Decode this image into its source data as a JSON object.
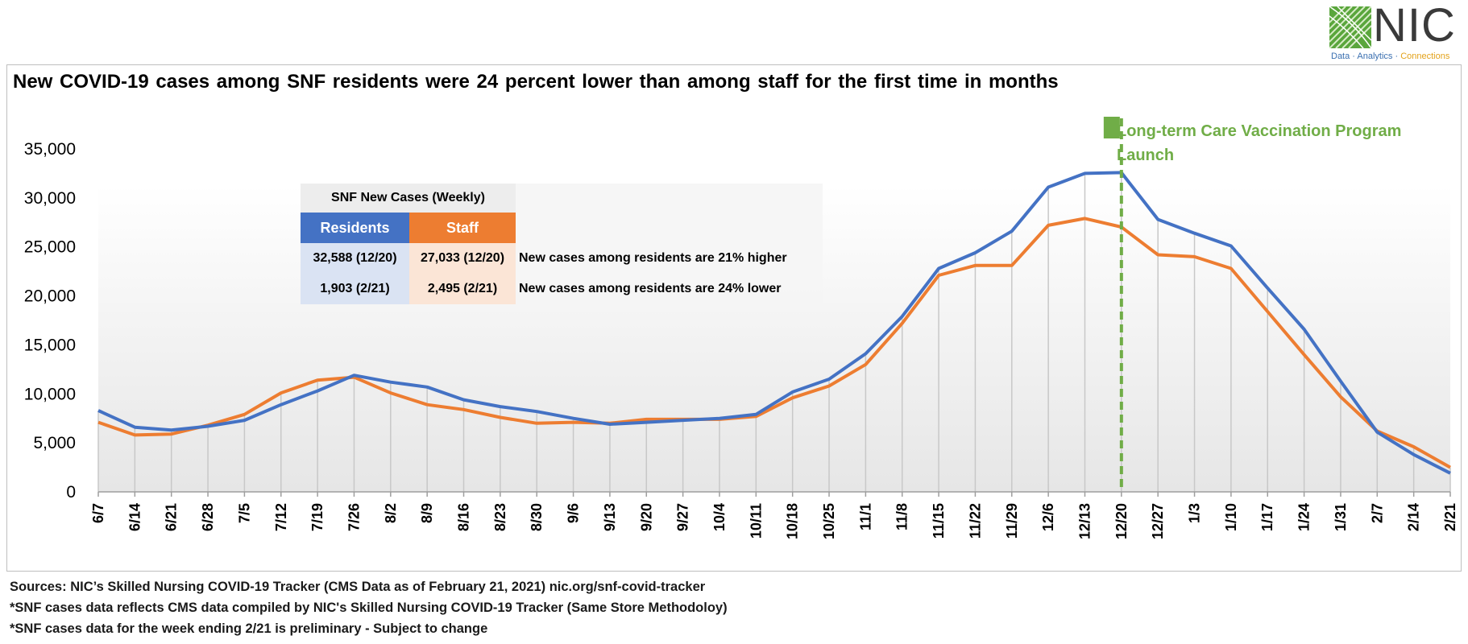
{
  "logo": {
    "name": "NIC",
    "tag_parts": [
      "Data · Analytics · ",
      "Connections"
    ]
  },
  "title": "New COVID-19 cases among SNF residents were 24 percent lower than among staff for the first time in months",
  "annotation": {
    "line1": "Long-term Care Vaccination Program",
    "line2": "Launch",
    "at_category": "12/20"
  },
  "table": {
    "header": "SNF New Cases (Weekly)",
    "col_residents": "Residents",
    "col_staff": "Staff",
    "rows": [
      {
        "residents": "32,588 (12/20)",
        "staff": "27,033 (12/20)",
        "note": "New cases among residents are 21% higher"
      },
      {
        "residents": "1,903 (2/21)",
        "staff": "2,495 (2/21)",
        "note": "New cases among residents are 24% lower"
      }
    ]
  },
  "sources": [
    "Sources: NIC’s Skilled Nursing COVID-19 Tracker (CMS Data as of February 21, 2021)  nic.org/snf-covid-tracker",
    "*SNF cases data reflects CMS data compiled by NIC's Skilled Nursing COVID-19 Tracker (Same Store Methodoloy)",
    "*SNF cases data for the week ending 2/21 is preliminary - Subject to change"
  ],
  "colors": {
    "residents": "#4472c4",
    "staff": "#ed7d31",
    "annotation": "#70ad47",
    "table_header_bg": "#ededed",
    "residents_light": "#dae3f3",
    "staff_light": "#fbe5d6"
  },
  "chart_data": {
    "type": "line",
    "title": "New COVID-19 cases among SNF residents were 24 percent lower than among staff for the first time in months",
    "xlabel": "",
    "ylabel": "",
    "ylim": [
      0,
      35000
    ],
    "yticks": [
      0,
      5000,
      10000,
      15000,
      20000,
      25000,
      30000,
      35000
    ],
    "ytick_labels": [
      "0",
      "5,000",
      "10,000",
      "15,000",
      "20,000",
      "25,000",
      "30,000",
      "35,000"
    ],
    "grid": "vertical drop lines",
    "categories": [
      "6/7",
      "6/14",
      "6/21",
      "6/28",
      "7/5",
      "7/12",
      "7/19",
      "7/26",
      "8/2",
      "8/9",
      "8/16",
      "8/23",
      "8/30",
      "9/6",
      "9/13",
      "9/20",
      "9/27",
      "10/4",
      "10/11",
      "10/18",
      "10/25",
      "11/1",
      "11/8",
      "11/15",
      "11/22",
      "11/29",
      "12/6",
      "12/13",
      "12/20",
      "12/27",
      "1/3",
      "1/10",
      "1/17",
      "1/24",
      "1/31",
      "2/7",
      "2/14",
      "2/21"
    ],
    "series": [
      {
        "name": "Residents",
        "values": [
          8300,
          6600,
          6300,
          6700,
          7300,
          8900,
          10300,
          11900,
          11200,
          10700,
          9400,
          8700,
          8200,
          7500,
          6900,
          7100,
          7300,
          7500,
          7900,
          10200,
          11500,
          14100,
          17900,
          22800,
          24400,
          26600,
          31100,
          32500,
          32588,
          27800,
          26400,
          25100,
          20800,
          16600,
          11300,
          6100,
          3800,
          1903
        ]
      },
      {
        "name": "Staff",
        "values": [
          7100,
          5800,
          5900,
          6800,
          7900,
          10100,
          11400,
          11700,
          10100,
          8900,
          8400,
          7600,
          7000,
          7100,
          7000,
          7400,
          7400,
          7400,
          7700,
          9600,
          10800,
          13000,
          17200,
          22100,
          23100,
          23100,
          27200,
          27900,
          27033,
          24200,
          24000,
          22800,
          18400,
          14000,
          9700,
          6200,
          4600,
          2495
        ]
      }
    ]
  }
}
